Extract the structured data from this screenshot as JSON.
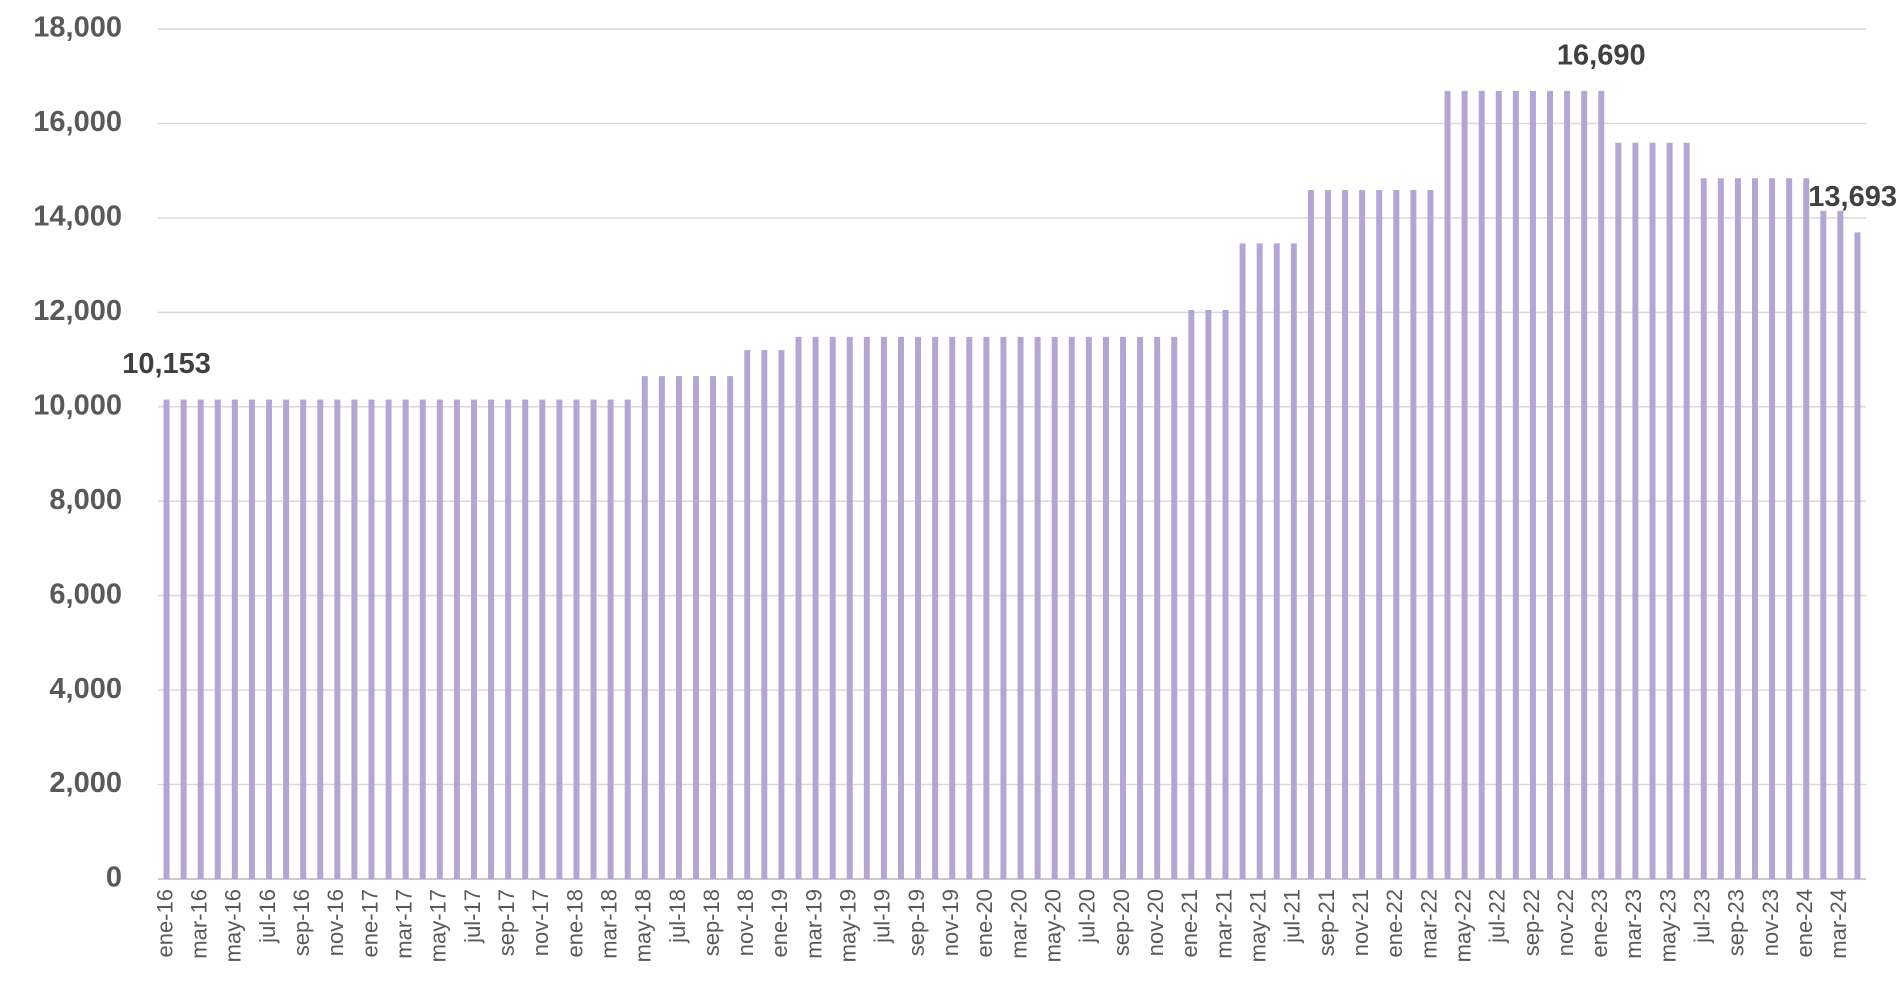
{
  "chart_data": {
    "type": "bar",
    "categories": [
      "ene-16",
      null,
      "mar-16",
      null,
      "may-16",
      null,
      "jul-16",
      null,
      "sep-16",
      null,
      "nov-16",
      null,
      "ene-17",
      null,
      "mar-17",
      null,
      "may-17",
      null,
      "jul-17",
      null,
      "sep-17",
      null,
      "nov-17",
      null,
      "ene-18",
      null,
      "mar-18",
      null,
      "may-18",
      null,
      "jul-18",
      null,
      "sep-18",
      null,
      "nov-18",
      null,
      "ene-19",
      null,
      "mar-19",
      null,
      "may-19",
      null,
      "jul-19",
      null,
      "sep-19",
      null,
      "nov-19",
      null,
      "ene-20",
      null,
      "mar-20",
      null,
      "may-20",
      null,
      "jul-20",
      null,
      "sep-20",
      null,
      "nov-20",
      null,
      "ene-21",
      null,
      "mar-21",
      null,
      "may-21",
      null,
      "jul-21",
      null,
      "sep-21",
      null,
      "nov-21",
      null,
      "ene-22",
      null,
      "mar-22",
      null,
      "may-22",
      null,
      "jul-22",
      null,
      "sep-22",
      null,
      "nov-22",
      null,
      "ene-23",
      null,
      "mar-23",
      null,
      "may-23",
      null,
      "jul-23",
      null,
      "sep-23",
      null,
      "nov-23",
      null,
      "ene-24",
      null,
      "mar-24",
      null
    ],
    "values": [
      10153,
      10153,
      10153,
      10153,
      10153,
      10153,
      10153,
      10153,
      10153,
      10153,
      10153,
      10153,
      10153,
      10153,
      10153,
      10153,
      10153,
      10153,
      10153,
      10153,
      10153,
      10153,
      10153,
      10153,
      10153,
      10153,
      10153,
      10153,
      10650,
      10650,
      10650,
      10650,
      10650,
      10650,
      11200,
      11200,
      11200,
      11480,
      11480,
      11480,
      11480,
      11480,
      11480,
      11480,
      11480,
      11480,
      11480,
      11480,
      11480,
      11480,
      11480,
      11480,
      11480,
      11480,
      11480,
      11480,
      11480,
      11480,
      11480,
      11480,
      12050,
      12050,
      12050,
      13460,
      13460,
      13460,
      13460,
      14590,
      14590,
      14590,
      14590,
      14590,
      14590,
      14590,
      14590,
      16690,
      16690,
      16690,
      16690,
      16690,
      16690,
      16690,
      16690,
      16690,
      16690,
      15590,
      15590,
      15590,
      15590,
      15590,
      14840,
      14840,
      14840,
      14840,
      14840,
      14840,
      14840,
      14150,
      14150,
      13693
    ],
    "value_labels": [
      "10,153",
      null,
      null,
      null,
      null,
      null,
      null,
      null,
      null,
      null,
      null,
      null,
      null,
      null,
      null,
      null,
      null,
      null,
      null,
      null,
      null,
      null,
      null,
      null,
      null,
      null,
      null,
      null,
      null,
      null,
      null,
      null,
      null,
      null,
      null,
      null,
      null,
      null,
      null,
      null,
      null,
      null,
      null,
      null,
      null,
      null,
      null,
      null,
      null,
      null,
      null,
      null,
      null,
      null,
      null,
      null,
      null,
      null,
      null,
      null,
      null,
      null,
      null,
      null,
      null,
      null,
      null,
      null,
      null,
      null,
      null,
      null,
      null,
      null,
      null,
      null,
      null,
      null,
      null,
      null,
      null,
      null,
      null,
      null,
      "16,690",
      null,
      null,
      null,
      null,
      null,
      null,
      null,
      null,
      null,
      null,
      null,
      null,
      null,
      null,
      "13,693"
    ],
    "color": "#b4a6d3",
    "ylim": [
      0,
      18000
    ],
    "yticks": [
      0,
      {
        "value": 2000,
        "label": "2,000"
      },
      {
        "value": 4000,
        "label": "4,000"
      },
      {
        "value": 6000,
        "label": "6,000"
      },
      {
        "value": 8000,
        "label": "8,000"
      },
      {
        "value": 10000,
        "label": "10,000"
      },
      {
        "value": 12000,
        "label": "12,000"
      },
      {
        "value": 14000,
        "label": "14,000"
      },
      {
        "value": 16000,
        "label": "16,000"
      },
      {
        "value": 18000,
        "label": "18,000"
      }
    ],
    "grid": true
  }
}
